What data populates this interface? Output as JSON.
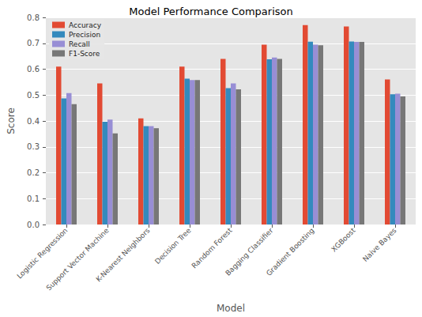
{
  "chart_data": {
    "type": "bar",
    "title": "Model Performance Comparison",
    "x_label": "Model",
    "y_label": "Score",
    "categories": [
      "Logistic Regression",
      "Support Vector Machine",
      "K-Nearest Neighbors",
      "Decision Tree",
      "Random Forest",
      "Bagging Classifier",
      "Gradient Boosting",
      "XGBoost",
      "Naive Bayes"
    ],
    "series": [
      {
        "name": "Accuracy",
        "color": "#E24A33",
        "values": [
          0.61,
          0.545,
          0.41,
          0.61,
          0.64,
          0.695,
          0.77,
          0.765,
          0.56
        ]
      },
      {
        "name": "Precision",
        "color": "#348ABD",
        "values": [
          0.487,
          0.397,
          0.38,
          0.563,
          0.527,
          0.638,
          0.706,
          0.707,
          0.503
        ]
      },
      {
        "name": "Recall",
        "color": "#988ED5",
        "values": [
          0.508,
          0.405,
          0.38,
          0.558,
          0.545,
          0.645,
          0.695,
          0.705,
          0.505
        ]
      },
      {
        "name": "F1-Score",
        "color": "#777777",
        "values": [
          0.465,
          0.352,
          0.372,
          0.558,
          0.522,
          0.64,
          0.692,
          0.705,
          0.495
        ]
      }
    ],
    "ylim": [
      0,
      0.8
    ],
    "yticks": [
      {
        "value": 0,
        "label": "0.0"
      },
      0.1,
      0.2,
      0.3,
      0.4,
      0.5,
      0.6,
      0.7,
      0.8
    ],
    "grid": true,
    "legend": "upper left"
  }
}
